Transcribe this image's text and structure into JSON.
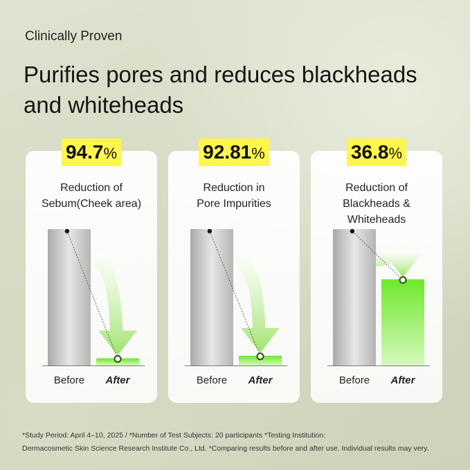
{
  "header": {
    "eyebrow": "Clinically Proven",
    "title": "Purifies pores and reduces blackheads and whiteheads"
  },
  "colors": {
    "badge": "#fff64d",
    "before_bar": "#c8c8c8",
    "after_bar": "#7fe83a",
    "arrow": "#9fe36b"
  },
  "chart_data": [
    {
      "type": "bar",
      "badge_value": "94.7",
      "badge_unit": "%",
      "title": "Reduction of\nSebum(Cheek area)",
      "categories": [
        "Before",
        "After"
      ],
      "values": [
        100,
        5.3
      ],
      "ylim": [
        0,
        100
      ]
    },
    {
      "type": "bar",
      "badge_value": "92.81",
      "badge_unit": "%",
      "title": "Reduction in\nPore Impurities",
      "categories": [
        "Before",
        "After"
      ],
      "values": [
        100,
        7.19
      ],
      "ylim": [
        0,
        100
      ]
    },
    {
      "type": "bar",
      "badge_value": "36.8",
      "badge_unit": "%",
      "title": "Reduction of\nBlackheads &\nWhiteheads",
      "categories": [
        "Before",
        "After"
      ],
      "values": [
        100,
        63.2
      ],
      "ylim": [
        0,
        100
      ]
    }
  ],
  "footnote": {
    "line1": "*Study Period: April 4–10, 2025 / *Number of Test Subjects: 20 participants  *Testing Institution:",
    "line2": "Dermacosmetic Skin Science Research Institute Co., Ltd. *Comparing results before and after use. Individual results may very."
  }
}
